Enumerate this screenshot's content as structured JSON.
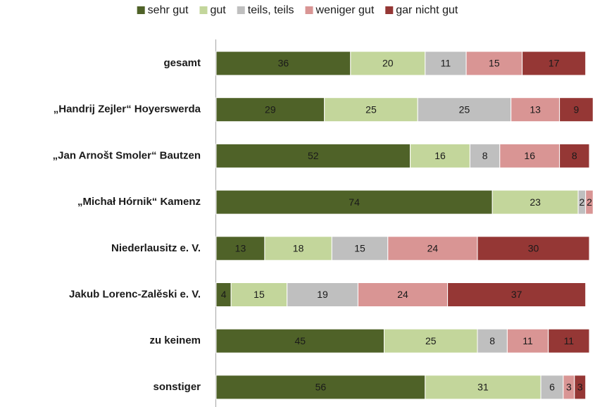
{
  "chart_data": {
    "type": "stacked-bar-horizontal",
    "categories": [
      "gesamt",
      "„Handrij Zejler“ Hoyerswerda",
      "„Jan Arnošt Smoler“ Bautzen",
      "„Michał Hórnik“ Kamenz",
      "Niederlausitz e. V.",
      "Jakub Lorenc-Zalěski e. V.",
      "zu keinem",
      "sonstiger"
    ],
    "series": [
      {
        "name": "sehr gut",
        "color": "#4f6228",
        "values": [
          36,
          29,
          52,
          74,
          13,
          4,
          45,
          56
        ]
      },
      {
        "name": "gut",
        "color": "#c3d69b",
        "values": [
          20,
          25,
          16,
          23,
          18,
          15,
          25,
          31
        ]
      },
      {
        "name": "teils, teils",
        "color": "#bfbfbf",
        "values": [
          11,
          25,
          8,
          2,
          15,
          19,
          8,
          6
        ]
      },
      {
        "name": "weniger gut",
        "color": "#d99594",
        "values": [
          15,
          13,
          16,
          2,
          24,
          24,
          11,
          3
        ]
      },
      {
        "name": "gar nicht gut",
        "color": "#953735",
        "values": [
          17,
          9,
          8,
          null,
          30,
          37,
          11,
          3
        ]
      }
    ],
    "xlim": [
      0,
      100
    ],
    "legend": "top"
  }
}
